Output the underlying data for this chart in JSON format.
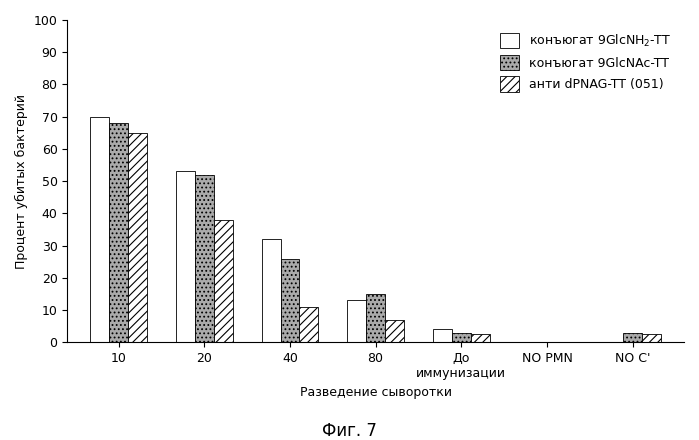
{
  "categories": [
    "10",
    "20",
    "40",
    "80",
    "До\nиммунизации",
    "NO PMN",
    "NO C'"
  ],
  "series": [
    {
      "name": "конъюгат 9GlcNH₂-TT",
      "values": [
        70,
        53,
        32,
        13,
        4,
        0,
        0
      ],
      "hatch": "",
      "facecolor": "#ffffff",
      "edgecolor": "#000000"
    },
    {
      "name": "конъюгат 9GlcNAc-TT",
      "values": [
        68,
        52,
        26,
        15,
        3,
        0,
        3
      ],
      "hatch": "....",
      "facecolor": "#aaaaaa",
      "edgecolor": "#000000"
    },
    {
      "name": "анти dPNAG-TT (051)",
      "values": [
        65,
        38,
        11,
        7,
        2.5,
        0,
        2.5
      ],
      "hatch": "////",
      "facecolor": "#ffffff",
      "edgecolor": "#000000"
    }
  ],
  "ylabel": "Процент убитых бактерий",
  "xlabel": "Разведение сыворотки",
  "title": "Фиг. 7",
  "ylim": [
    0,
    100
  ],
  "yticks": [
    0,
    10,
    20,
    30,
    40,
    50,
    60,
    70,
    80,
    90,
    100
  ],
  "bar_width": 0.22,
  "legend_fontsize": 9,
  "axis_fontsize": 9,
  "title_fontsize": 12,
  "figsize": [
    6.99,
    4.4
  ],
  "dpi": 100
}
